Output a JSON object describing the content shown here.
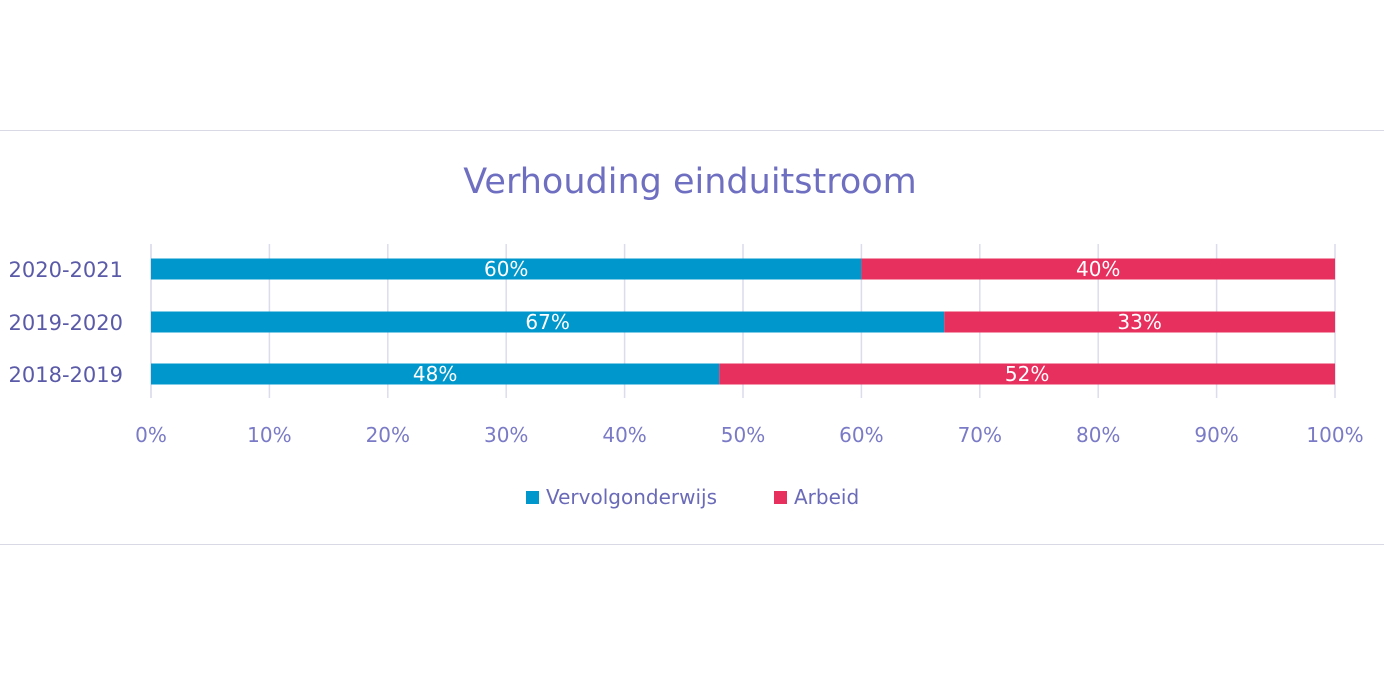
{
  "colors": {
    "Vervolgonderwijs": "#0097cc",
    "Arbeid": "#e8305e",
    "grid": "#dcdcec",
    "axis_text": "#7a7ac6",
    "title": "#6f6fc2"
  },
  "chart_data": {
    "type": "bar",
    "orientation": "horizontal",
    "stacked": true,
    "title": "Verhouding einduitstroom",
    "categories": [
      "2020-2021",
      "2019-2020",
      "2018-2019"
    ],
    "series": [
      {
        "name": "Vervolgonderwijs",
        "values": [
          60,
          67,
          48
        ],
        "labels": [
          "60%",
          "67%",
          "48%"
        ]
      },
      {
        "name": "Arbeid",
        "values": [
          40,
          33,
          52
        ],
        "labels": [
          "40%",
          "33%",
          "52%"
        ]
      }
    ],
    "xlim": [
      0,
      100
    ],
    "x_ticks": [
      "0%",
      "10%",
      "20%",
      "30%",
      "40%",
      "50%",
      "60%",
      "70%",
      "80%",
      "90%",
      "100%"
    ],
    "grid": "vertical",
    "legend_position": "bottom"
  }
}
